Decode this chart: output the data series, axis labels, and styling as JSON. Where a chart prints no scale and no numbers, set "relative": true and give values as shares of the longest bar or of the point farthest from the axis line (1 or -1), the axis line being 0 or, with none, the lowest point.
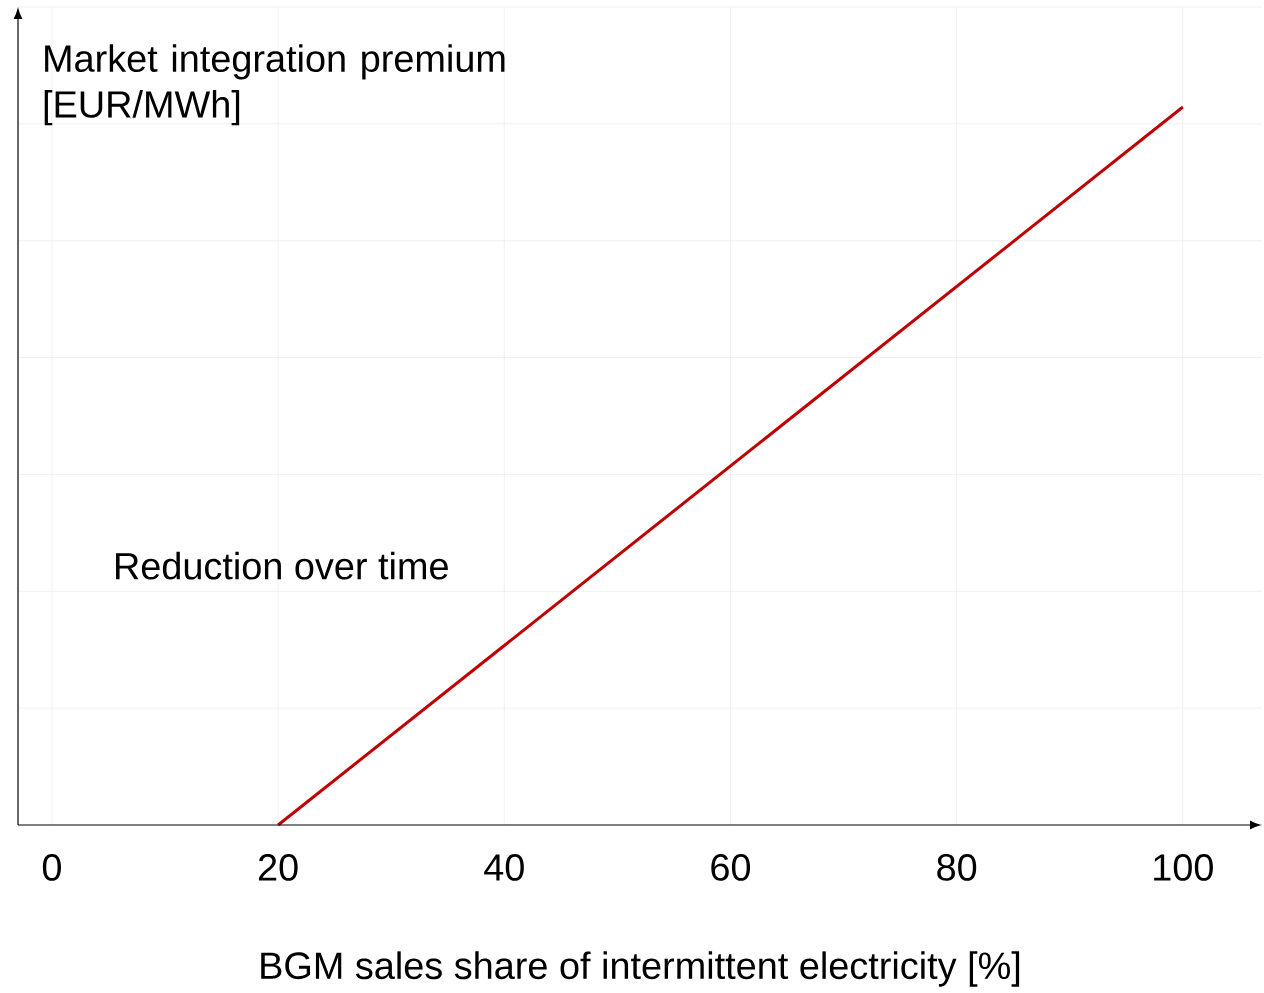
{
  "chart_data": {
    "type": "line",
    "xlabel": "BGM sales share of intermittent electricity [%]",
    "ylabel": "Market integration premium [EUR/MWh]",
    "annotations": [
      "Reduction over time"
    ],
    "x": [
      20,
      100
    ],
    "series": [
      {
        "color": "#c00000",
        "values": [
          0,
          1
        ]
      }
    ],
    "relative": true,
    "xlim": [
      -3,
      107
    ],
    "xticks": [
      0,
      20,
      40,
      60,
      80,
      100
    ],
    "grid": true
  }
}
